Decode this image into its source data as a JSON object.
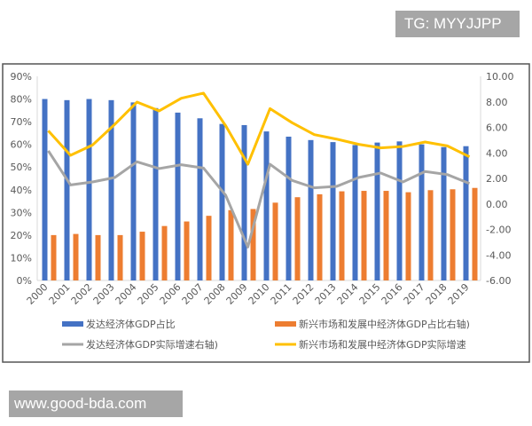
{
  "watermarks": {
    "top": "TG: MYYJJPP",
    "bottom": "www.good-bda.com"
  },
  "chart_data": {
    "type": "bar+line",
    "categories": [
      "2000",
      "2001",
      "2002",
      "2003",
      "2004",
      "2005",
      "2006",
      "2007",
      "2008",
      "2009",
      "2010",
      "2011",
      "2012",
      "2013",
      "2014",
      "2015",
      "2016",
      "2017",
      "2018",
      "2019"
    ],
    "left_axis": {
      "ylim": [
        0,
        90
      ],
      "ticks": [
        "0%",
        "10%",
        "20%",
        "30%",
        "40%",
        "50%",
        "60%",
        "70%",
        "80%",
        "90%"
      ]
    },
    "right_axis": {
      "ylim": [
        -6,
        10
      ],
      "ticks": [
        "-6.00",
        "-4.00",
        "-2.00",
        "0.00",
        "2.00",
        "4.00",
        "6.00",
        "8.00",
        "10.00"
      ]
    },
    "grid": false,
    "legend_position": "bottom",
    "series": [
      {
        "name": "发达经济体GDP占比",
        "kind": "bar",
        "axis": "left",
        "color": "#4472c4",
        "values": [
          80,
          79.5,
          80,
          79.5,
          78.5,
          76,
          74,
          71.5,
          69,
          68.5,
          65.7,
          63.4,
          61.9,
          61,
          59.7,
          60.8,
          61.3,
          60,
          58.8,
          59.2
        ]
      },
      {
        "name": "新兴市场和发展中经济体GDP占比右轴)",
        "kind": "bar",
        "axis": "left",
        "color": "#ed7d31",
        "values": [
          20,
          20.5,
          20,
          20,
          21.5,
          24,
          26,
          28.5,
          31,
          31.5,
          34.3,
          36.7,
          38,
          39.3,
          39.5,
          39.5,
          38.9,
          39.8,
          40.2,
          40.8
        ]
      },
      {
        "name": "发达经济体GDP实际增速右轴)",
        "kind": "line",
        "axis": "right",
        "color": "#a5a5a5",
        "values": [
          4.16,
          1.49,
          1.72,
          2.07,
          3.3,
          2.77,
          3.07,
          2.81,
          0.68,
          -3.38,
          3.11,
          1.84,
          1.26,
          1.37,
          2.07,
          2.42,
          1.72,
          2.54,
          2.3,
          1.6
        ]
      },
      {
        "name": "新兴市场和发展中经济体GDP实际增速",
        "kind": "line",
        "axis": "right",
        "color": "#ffc000",
        "values": [
          5.73,
          3.81,
          4.62,
          6.24,
          7.98,
          7.29,
          8.28,
          8.68,
          6.13,
          3.11,
          7.47,
          6.36,
          5.43,
          5.08,
          4.67,
          4.39,
          4.5,
          4.85,
          4.55,
          3.69
        ]
      }
    ]
  }
}
